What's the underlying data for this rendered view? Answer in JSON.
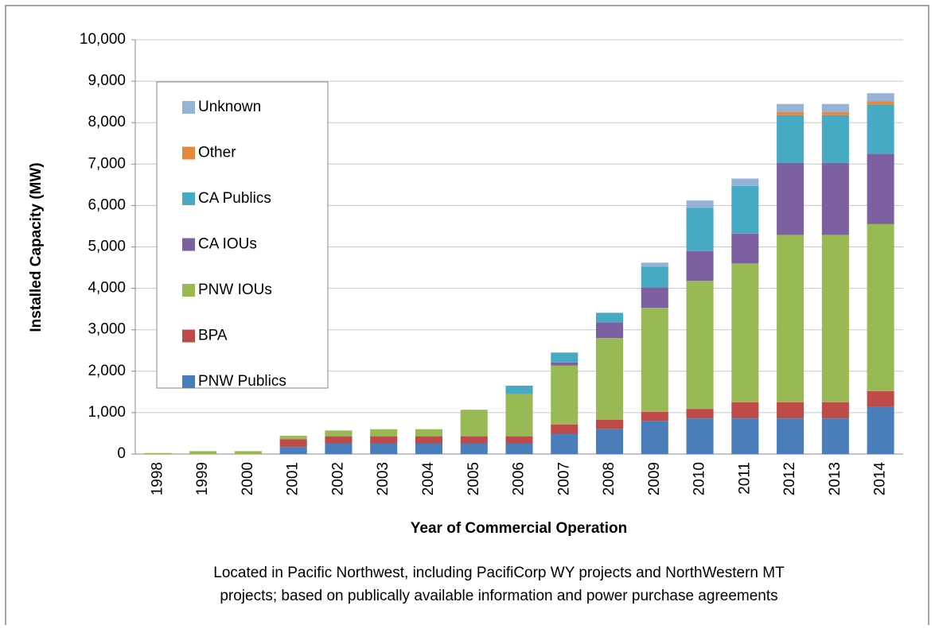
{
  "chart_data": {
    "type": "stacked_bar",
    "y_label": "Installed Capacity  (MW)",
    "x_label": "Year of Commercial Operation",
    "note": [
      "Located in Pacific Northwest,  including PacifiCorp WY projects and NorthWestern MT",
      "projects; based on publically available information  and power purchase agreements"
    ],
    "categories": [
      "1998",
      "1999",
      "2000",
      "2001",
      "2002",
      "2003",
      "2004",
      "2005",
      "2006",
      "2007",
      "2008",
      "2009",
      "2010",
      "2011",
      "2012",
      "2013",
      "2014"
    ],
    "series": [
      {
        "name": "PNW Publics",
        "color": "#4a7ebb",
        "values": [
          0,
          0,
          0,
          170,
          250,
          250,
          250,
          250,
          250,
          480,
          600,
          800,
          860,
          860,
          860,
          860,
          1140
        ]
      },
      {
        "name": "BPA",
        "color": "#be4b48",
        "values": [
          0,
          0,
          0,
          190,
          180,
          180,
          180,
          180,
          180,
          230,
          230,
          220,
          230,
          390,
          390,
          390,
          380
        ]
      },
      {
        "name": "PNW IOUs",
        "color": "#98b954",
        "values": [
          25,
          70,
          70,
          80,
          140,
          170,
          170,
          640,
          1020,
          1430,
          1970,
          2510,
          3090,
          3350,
          4040,
          4040,
          4030
        ]
      },
      {
        "name": "CA IOUs",
        "color": "#7d60a0",
        "values": [
          0,
          0,
          0,
          0,
          0,
          0,
          0,
          0,
          0,
          70,
          380,
          490,
          720,
          720,
          1740,
          1740,
          1700
        ]
      },
      {
        "name": "CA Publics",
        "color": "#46aac5",
        "values": [
          0,
          0,
          0,
          0,
          0,
          0,
          0,
          0,
          200,
          240,
          230,
          500,
          1040,
          1150,
          1150,
          1150,
          1190
        ]
      },
      {
        "name": "Other",
        "color": "#e8883a",
        "values": [
          0,
          0,
          0,
          0,
          0,
          0,
          0,
          0,
          0,
          0,
          0,
          0,
          0,
          0,
          80,
          80,
          80
        ]
      },
      {
        "name": "Unknown",
        "color": "#95b3d7",
        "values": [
          0,
          0,
          0,
          0,
          0,
          0,
          0,
          0,
          0,
          0,
          0,
          100,
          180,
          180,
          190,
          190,
          190
        ]
      }
    ],
    "ylim": [
      0,
      10000
    ],
    "yticks": [
      0,
      {
        "value": 1000,
        "label": "1,000"
      },
      {
        "value": 2000,
        "label": "2,000"
      },
      {
        "value": 3000,
        "label": "3,000"
      },
      {
        "value": 4000,
        "label": "4,000"
      },
      {
        "value": 5000,
        "label": "5,000"
      },
      {
        "value": 6000,
        "label": "6,000"
      },
      {
        "value": 7000,
        "label": "7,000"
      },
      {
        "value": 8000,
        "label": "8,000"
      },
      {
        "value": 9000,
        "label": "9,000"
      },
      {
        "value": 10000,
        "label": "10,000"
      }
    ],
    "grid": true,
    "legend": "upper left"
  }
}
